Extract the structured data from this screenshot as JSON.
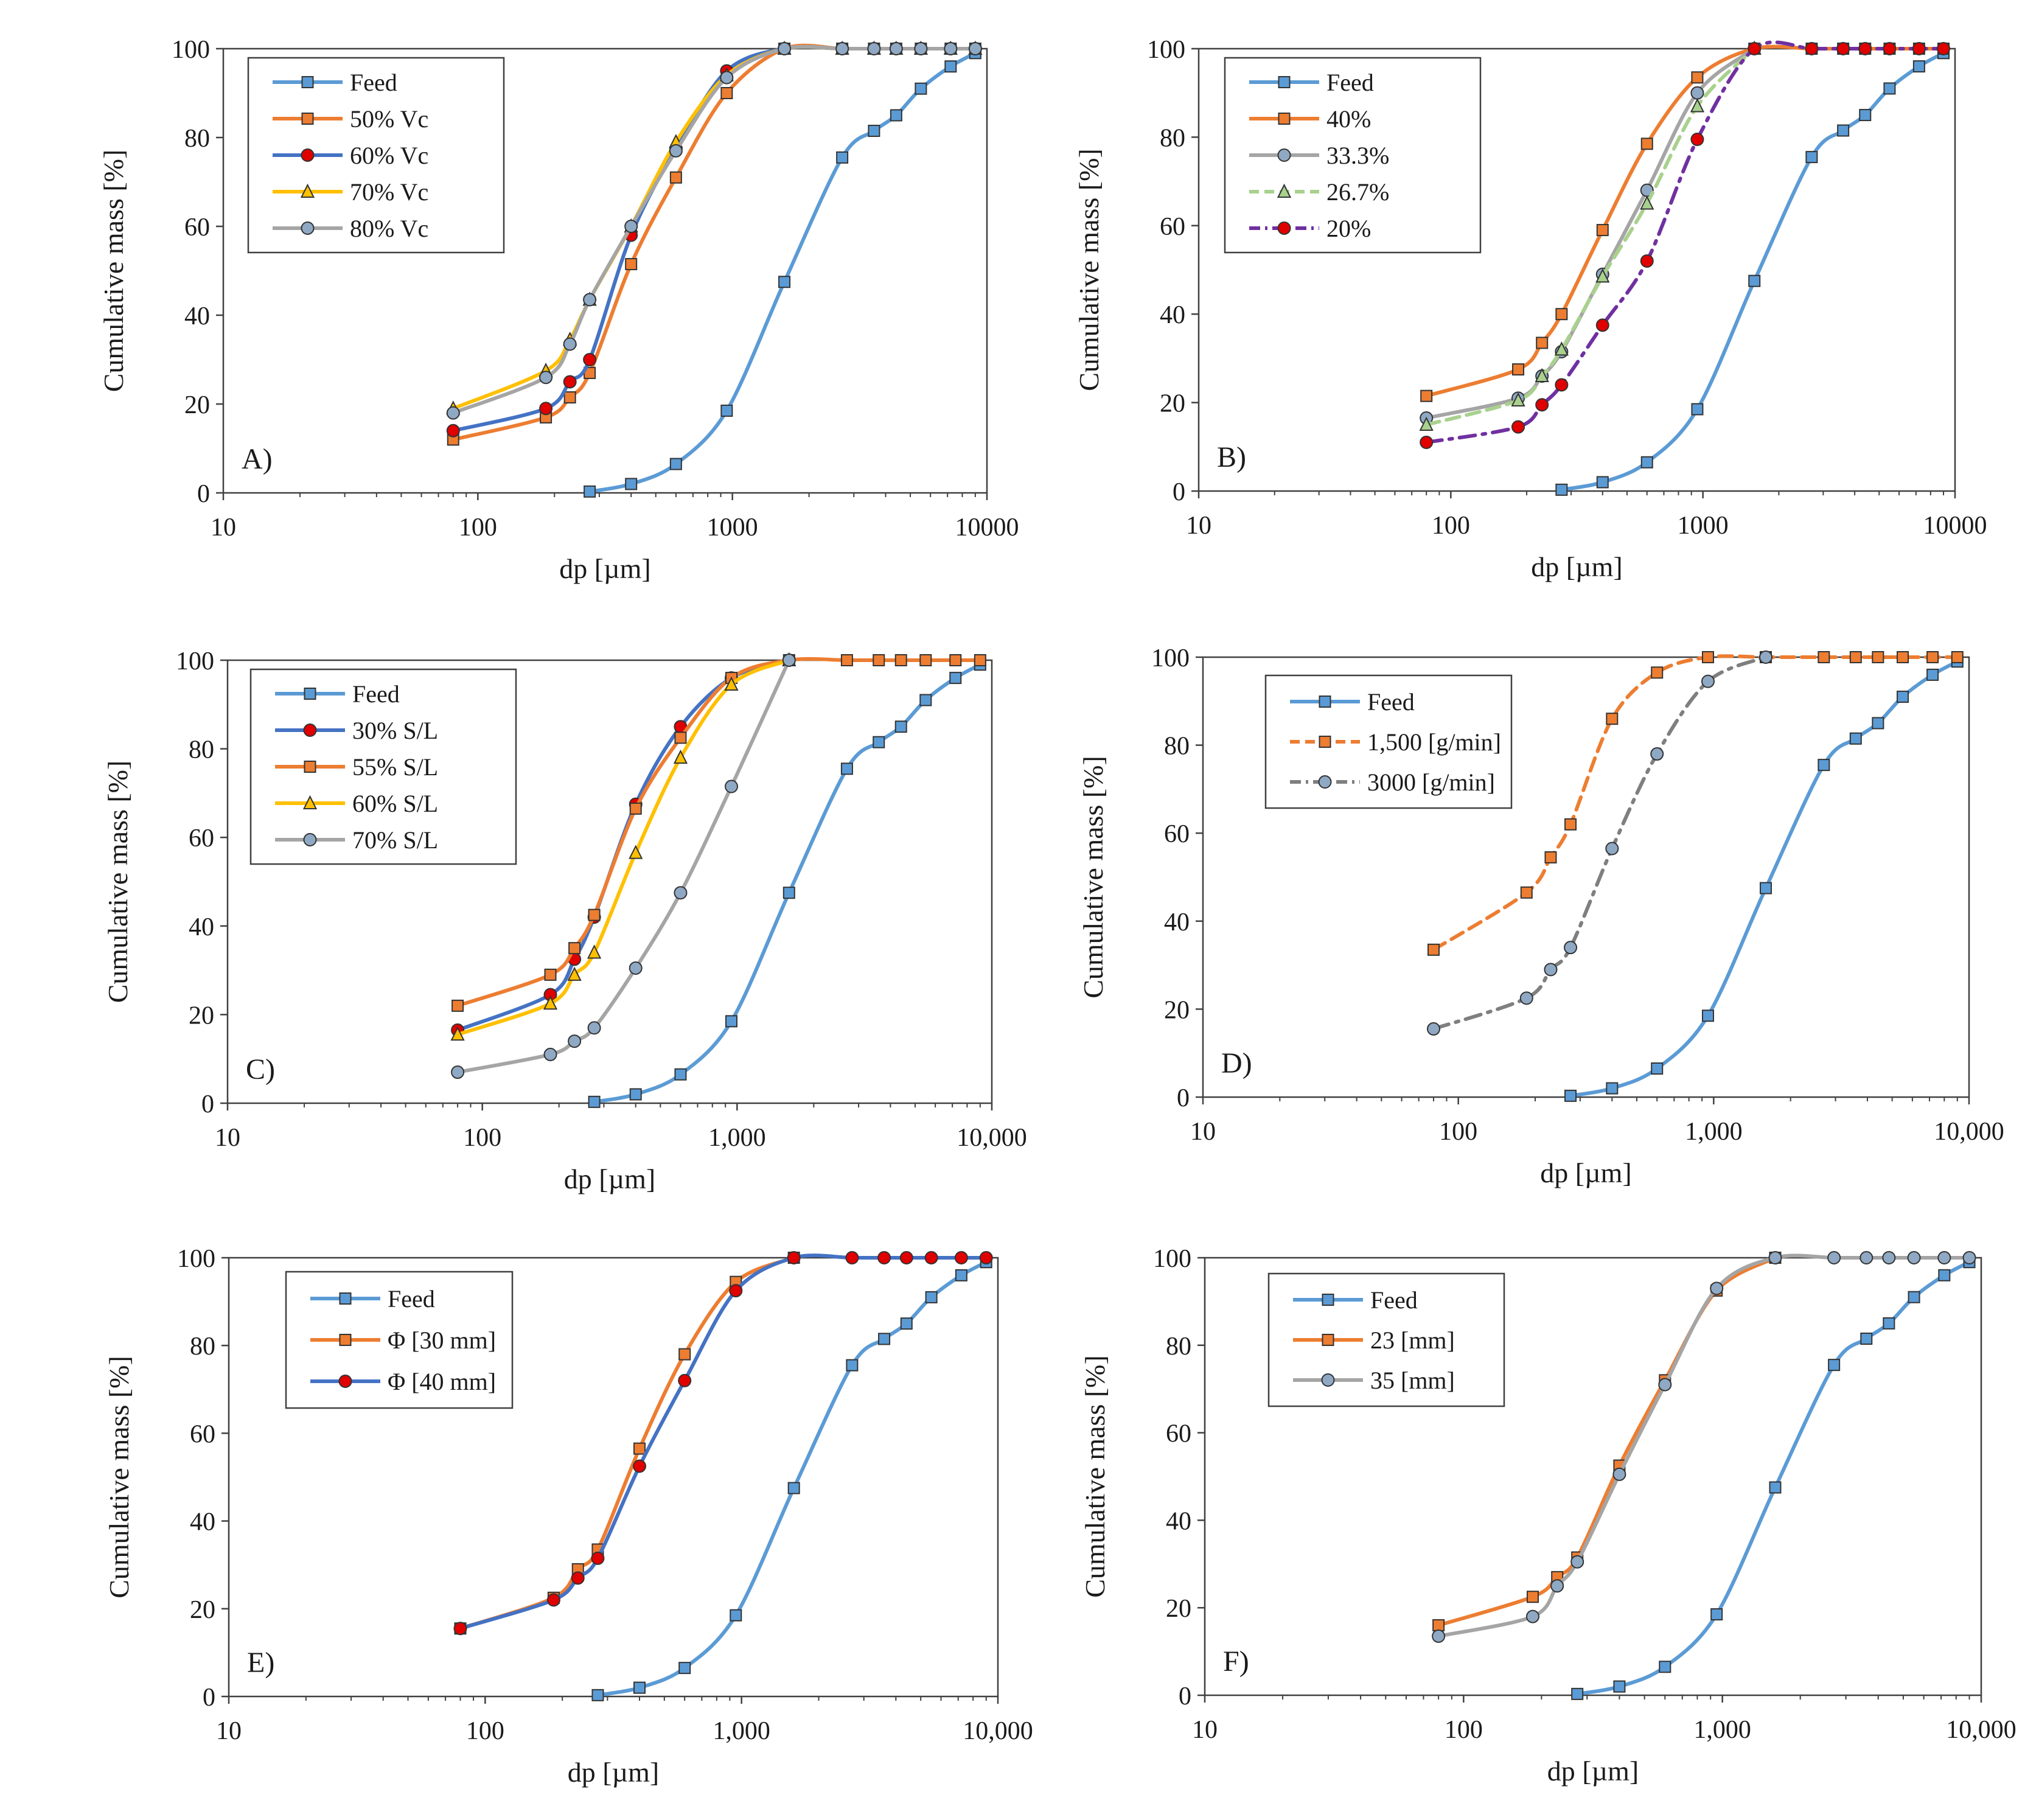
{
  "figure": {
    "colors": {
      "Feed": "#5b9bd5",
      "orange": "#ed7d31",
      "blue": "#4472c4",
      "yellow": "#ffc000",
      "gray": "#a5a5a5",
      "green": "#a9d18e",
      "purple": "#7030a0",
      "red_marker": "#e00000",
      "feed_marker": "#5b9bd5"
    }
  },
  "chart_data": [
    {
      "type": "line",
      "panel_label": "A)",
      "xlabel": "dp [µm]",
      "ylabel": "Cumulative mass [%]",
      "xscale": "log",
      "xlim": [
        10,
        10000
      ],
      "ylim": [
        0,
        100
      ],
      "xticks": [
        "10",
        "100",
        "1000",
        "10000"
      ],
      "yticks": [
        "0",
        "20",
        "40",
        "60",
        "80",
        "100"
      ],
      "legend_position": "top-left",
      "series": [
        {
          "name": "Feed",
          "color": "#5b9bd5",
          "marker": "square",
          "dash": "solid",
          "x": [
            275,
            400,
            600,
            950,
            1600,
            2700,
            3600,
            4400,
            5500,
            7200,
            9000
          ],
          "y": [
            0.3,
            2,
            6.5,
            18.5,
            47.5,
            75.5,
            81.5,
            85,
            91,
            96,
            99
          ]
        },
        {
          "name": "50% Vc",
          "color": "#ed7d31",
          "marker": "square",
          "dash": "solid",
          "x": [
            80,
            185,
            230,
            275,
            400,
            600,
            950,
            1600,
            2700,
            3600,
            4400,
            5500,
            7200,
            9000
          ],
          "y": [
            12,
            17,
            21.5,
            27,
            51.5,
            71,
            90,
            100,
            100,
            100,
            100,
            100,
            100,
            100
          ]
        },
        {
          "name": "60% Vc",
          "color": "#4472c4",
          "marker": "circle",
          "dash": "solid",
          "x": [
            80,
            185,
            230,
            275,
            400,
            600,
            950,
            1600,
            2700,
            3600,
            4400,
            5500,
            7200,
            9000
          ],
          "y": [
            14,
            19,
            25,
            30,
            58,
            77.5,
            95,
            100,
            100,
            100,
            100,
            100,
            100,
            100
          ]
        },
        {
          "name": "70% Vc",
          "color": "#ffc000",
          "marker": "triangle",
          "dash": "solid",
          "x": [
            80,
            185,
            230,
            275,
            400,
            600,
            950,
            1600,
            2700,
            3600,
            4400,
            5500,
            7200,
            9000
          ],
          "y": [
            19,
            27.5,
            34.5,
            43.5,
            60,
            79,
            94,
            100,
            100,
            100,
            100,
            100,
            100,
            100
          ]
        },
        {
          "name": "80% Vc",
          "color": "#a5a5a5",
          "marker": "circle",
          "dash": "solid",
          "x": [
            80,
            185,
            230,
            275,
            400,
            600,
            950,
            1600,
            2700,
            3600,
            4400,
            5500,
            7200,
            9000
          ],
          "y": [
            18,
            26,
            33.5,
            43.5,
            60,
            77,
            93.5,
            100,
            100,
            100,
            100,
            100,
            100,
            100
          ]
        }
      ]
    },
    {
      "type": "line",
      "panel_label": "B)",
      "xlabel": "dp [µm]",
      "ylabel": "Cumulative mass [%]",
      "xscale": "log",
      "xlim": [
        10,
        10000
      ],
      "ylim": [
        0,
        100
      ],
      "xticks": [
        "10",
        "100",
        "1000",
        "10000"
      ],
      "yticks": [
        "0",
        "20",
        "40",
        "60",
        "80",
        "100"
      ],
      "legend_position": "top-left",
      "series": [
        {
          "name": "Feed",
          "color": "#5b9bd5",
          "marker": "square",
          "dash": "solid",
          "x": [
            275,
            400,
            600,
            950,
            1600,
            2700,
            3600,
            4400,
            5500,
            7200,
            9000
          ],
          "y": [
            0.3,
            2,
            6.5,
            18.5,
            47.5,
            75.5,
            81.5,
            85,
            91,
            96,
            99
          ]
        },
        {
          "name": "40%",
          "color": "#ed7d31",
          "marker": "square",
          "dash": "solid",
          "x": [
            80,
            185,
            230,
            275,
            400,
            600,
            950,
            1600,
            2700,
            3600,
            4400,
            5500,
            7200,
            9000
          ],
          "y": [
            21.5,
            27.5,
            33.5,
            40,
            59,
            78.5,
            93.5,
            100,
            100,
            100,
            100,
            100,
            100,
            100
          ]
        },
        {
          "name": "33.3%",
          "color": "#a5a5a5",
          "marker": "circle",
          "dash": "solid",
          "x": [
            80,
            185,
            230,
            275,
            400,
            600,
            950,
            1600
          ],
          "y": [
            16.5,
            21,
            26,
            31.5,
            49,
            68,
            90,
            100
          ]
        },
        {
          "name": "26.7%",
          "color": "#a9d18e",
          "marker": "triangle",
          "dash": "dashed",
          "x": [
            80,
            185,
            230,
            275,
            400,
            600,
            950,
            1600
          ],
          "y": [
            15,
            20.5,
            26,
            32,
            48.5,
            65,
            87,
            100
          ]
        },
        {
          "name": "20%",
          "color": "#7030a0",
          "marker": "circle",
          "dash": "dashdot",
          "x": [
            80,
            185,
            230,
            275,
            400,
            600,
            950,
            1600,
            2700,
            3600,
            4400,
            5500,
            7200,
            9000
          ],
          "y": [
            11,
            14.5,
            19.5,
            24,
            37.5,
            52,
            79.5,
            100,
            100,
            100,
            100,
            100,
            100,
            100
          ]
        }
      ]
    },
    {
      "type": "line",
      "panel_label": "C)",
      "xlabel": "dp [µm]",
      "ylabel": "Cumulative mass [%]",
      "xscale": "log",
      "xlim": [
        10,
        10000
      ],
      "ylim": [
        0,
        100
      ],
      "xticks": [
        "10",
        "100",
        "1,000",
        "10,000"
      ],
      "yticks": [
        "0",
        "20",
        "40",
        "60",
        "80",
        "100"
      ],
      "legend_position": "top-left",
      "series": [
        {
          "name": "Feed",
          "color": "#5b9bd5",
          "marker": "square",
          "dash": "solid",
          "x": [
            275,
            400,
            600,
            950,
            1600,
            2700,
            3600,
            4400,
            5500,
            7200,
            9000
          ],
          "y": [
            0.3,
            2,
            6.5,
            18.5,
            47.5,
            75.5,
            81.5,
            85,
            91,
            96,
            99
          ]
        },
        {
          "name": "30% S/L",
          "color": "#4472c4",
          "marker": "circle",
          "dash": "solid",
          "x": [
            80,
            185,
            230,
            275,
            400,
            600,
            950,
            1600
          ],
          "y": [
            16.5,
            24.5,
            32.5,
            42,
            67.5,
            85,
            96,
            100
          ]
        },
        {
          "name": "55% S/L",
          "color": "#ed7d31",
          "marker": "square",
          "dash": "solid",
          "x": [
            80,
            185,
            230,
            275,
            400,
            600,
            950,
            1600,
            2700,
            3600,
            4400,
            5500,
            7200,
            9000
          ],
          "y": [
            22,
            29,
            35,
            42.5,
            66.5,
            82.5,
            96,
            100,
            100,
            100,
            100,
            100,
            100,
            100
          ]
        },
        {
          "name": "60% S/L",
          "color": "#ffc000",
          "marker": "triangle",
          "dash": "solid",
          "x": [
            80,
            185,
            230,
            275,
            400,
            600,
            950,
            1600
          ],
          "y": [
            15.5,
            22.5,
            29,
            34,
            56.5,
            78,
            94.5,
            100
          ]
        },
        {
          "name": "70% S/L",
          "color": "#a5a5a5",
          "marker": "circle",
          "dash": "solid",
          "x": [
            80,
            185,
            230,
            275,
            400,
            600,
            950,
            1600
          ],
          "y": [
            7,
            11,
            14,
            17,
            30.5,
            47.5,
            71.5,
            100
          ]
        }
      ]
    },
    {
      "type": "line",
      "panel_label": "D)",
      "xlabel": "dp [µm]",
      "ylabel": "Cumulative mass [%]",
      "xscale": "log",
      "xlim": [
        10,
        10000
      ],
      "ylim": [
        0,
        100
      ],
      "xticks": [
        "10",
        "100",
        "1,000",
        "10,000"
      ],
      "yticks": [
        "0",
        "20",
        "40",
        "60",
        "80",
        "100"
      ],
      "legend_position": "top-left",
      "series": [
        {
          "name": "Feed",
          "color": "#5b9bd5",
          "marker": "square",
          "dash": "solid",
          "x": [
            275,
            400,
            600,
            950,
            1600,
            2700,
            3600,
            4400,
            5500,
            7200,
            9000
          ],
          "y": [
            0.3,
            2,
            6.5,
            18.5,
            47.5,
            75.5,
            81.5,
            85,
            91,
            96,
            99
          ]
        },
        {
          "name": "1,500 [g/min]",
          "color": "#ed7d31",
          "marker": "square",
          "dash": "dashed",
          "x": [
            80,
            185,
            230,
            275,
            400,
            600,
            950,
            1600,
            2700,
            3600,
            4400,
            5500,
            7200,
            9000
          ],
          "y": [
            33.5,
            46.5,
            54.5,
            62,
            86,
            96.5,
            100,
            100,
            100,
            100,
            100,
            100,
            100,
            100
          ]
        },
        {
          "name": "3000 [g/min]",
          "color": "#7f7f7f",
          "marker": "circle",
          "dash": "dashdot",
          "x": [
            80,
            185,
            230,
            275,
            400,
            600,
            950,
            1600
          ],
          "y": [
            15.5,
            22.5,
            29,
            34,
            56.5,
            78,
            94.5,
            100
          ]
        }
      ]
    },
    {
      "type": "line",
      "panel_label": "E)",
      "xlabel": "dp [µm]",
      "ylabel": "Cumulative mass [%]",
      "xscale": "log",
      "xlim": [
        10,
        10000
      ],
      "ylim": [
        0,
        100
      ],
      "xticks": [
        "10",
        "100",
        "1,000",
        "10,000"
      ],
      "yticks": [
        "0",
        "20",
        "40",
        "60",
        "80",
        "100"
      ],
      "legend_position": "top-left",
      "series": [
        {
          "name": "Feed",
          "color": "#5b9bd5",
          "marker": "square",
          "dash": "solid",
          "x": [
            275,
            400,
            600,
            950,
            1600,
            2700,
            3600,
            4400,
            5500,
            7200,
            9000
          ],
          "y": [
            0.3,
            2,
            6.5,
            18.5,
            47.5,
            75.5,
            81.5,
            85,
            91,
            96,
            99
          ]
        },
        {
          "name": "Φ [30 mm]",
          "color": "#ed7d31",
          "marker": "square",
          "dash": "solid",
          "x": [
            80,
            185,
            230,
            275,
            400,
            600,
            950,
            1600
          ],
          "y": [
            15.5,
            22.5,
            29,
            33.5,
            56.5,
            78,
            94.5,
            100
          ]
        },
        {
          "name": "Φ [40 mm]",
          "color": "#4472c4",
          "marker": "circle",
          "dash": "solid",
          "x": [
            80,
            185,
            230,
            275,
            400,
            600,
            950,
            1600,
            2700,
            3600,
            4400,
            5500,
            7200,
            9000
          ],
          "y": [
            15.5,
            22,
            27,
            31.5,
            52.5,
            72,
            92.5,
            100,
            100,
            100,
            100,
            100,
            100,
            100
          ]
        }
      ]
    },
    {
      "type": "line",
      "panel_label": "F)",
      "xlabel": "dp [µm]",
      "ylabel": "Cumulative mass [%]",
      "xscale": "log",
      "xlim": [
        10,
        10000
      ],
      "ylim": [
        0,
        100
      ],
      "xticks": [
        "10",
        "100",
        "1,000",
        "10,000"
      ],
      "yticks": [
        "0",
        "20",
        "40",
        "60",
        "80",
        "100"
      ],
      "legend_position": "top-left",
      "series": [
        {
          "name": "Feed",
          "color": "#5b9bd5",
          "marker": "square",
          "dash": "solid",
          "x": [
            275,
            400,
            600,
            950,
            1600,
            2700,
            3600,
            4400,
            5500,
            7200,
            9000
          ],
          "y": [
            0.3,
            2,
            6.5,
            18.5,
            47.5,
            75.5,
            81.5,
            85,
            91,
            96,
            99
          ]
        },
        {
          "name": "23 [mm]",
          "color": "#ed7d31",
          "marker": "square",
          "dash": "solid",
          "x": [
            80,
            185,
            230,
            275,
            400,
            600,
            950,
            1600
          ],
          "y": [
            16,
            22.5,
            27,
            31.5,
            52.5,
            72,
            92.5,
            100
          ]
        },
        {
          "name": "35 [mm]",
          "color": "#a5a5a5",
          "marker": "circle",
          "dash": "solid",
          "x": [
            80,
            185,
            230,
            275,
            400,
            600,
            950,
            1600,
            2700,
            3600,
            4400,
            5500,
            7200,
            9000
          ],
          "y": [
            13.5,
            18,
            25,
            30.5,
            50.5,
            71,
            93,
            100,
            100,
            100,
            100,
            100,
            100,
            100
          ]
        }
      ]
    }
  ]
}
